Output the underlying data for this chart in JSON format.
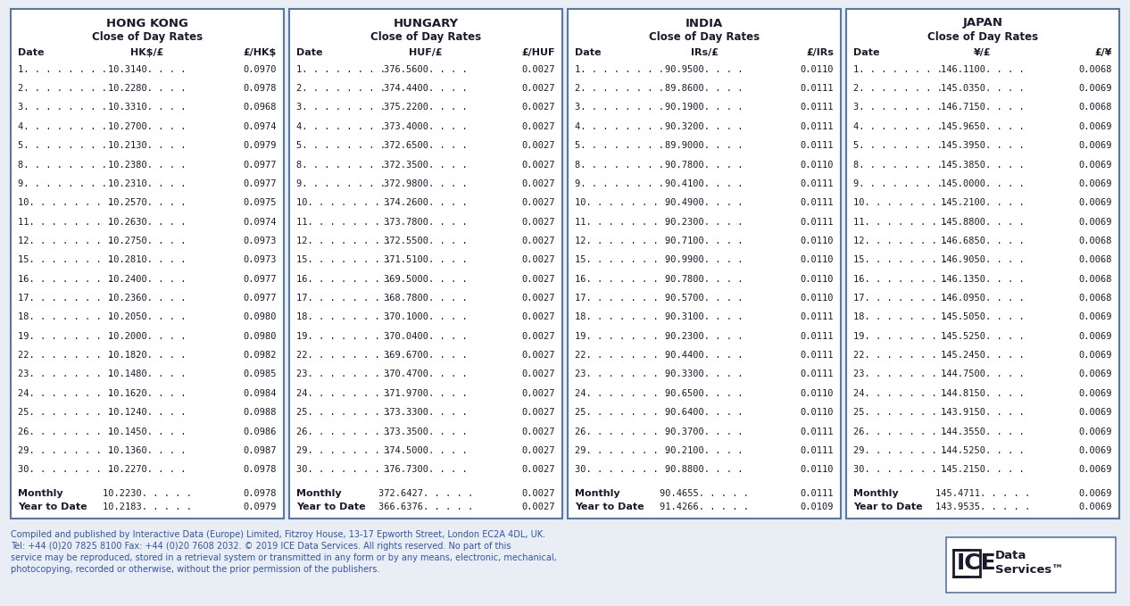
{
  "bg_color": "#e8eef4",
  "box_bg": "#ffffff",
  "border_color": "#5577aa",
  "text_color": "#1a1a2e",
  "footer_color": "#3355aa",
  "countries": [
    "HONG KONG",
    "HUNGARY",
    "INDIA",
    "JAPAN"
  ],
  "subtitle": "Close of Day Rates",
  "col_headers": [
    [
      "Date",
      "HK$/£",
      "£/HK$"
    ],
    [
      "Date",
      "HUF/£",
      "£/HUF"
    ],
    [
      "Date",
      "IRs/£",
      "£/IRs"
    ],
    [
      "Date",
      "¥/£",
      "£/¥"
    ]
  ],
  "dates": [
    "1",
    "2",
    "3",
    "4",
    "5",
    "8",
    "9",
    "10",
    "11",
    "12",
    "15",
    "16",
    "17",
    "18",
    "19",
    "22",
    "23",
    "24",
    "25",
    "26",
    "29",
    "30"
  ],
  "data": [
    {
      "col1": [
        "10.3140",
        "10.2280",
        "10.3310",
        "10.2700",
        "10.2130",
        "10.2380",
        "10.2310",
        "10.2570",
        "10.2630",
        "10.2750",
        "10.2810",
        "10.2400",
        "10.2360",
        "10.2050",
        "10.2000",
        "10.1820",
        "10.1480",
        "10.1620",
        "10.1240",
        "10.1450",
        "10.1360",
        "10.2270"
      ],
      "col2": [
        "0.0970",
        "0.0978",
        "0.0968",
        "0.0974",
        "0.0979",
        "0.0977",
        "0.0977",
        "0.0975",
        "0.0974",
        "0.0973",
        "0.0973",
        "0.0977",
        "0.0977",
        "0.0980",
        "0.0980",
        "0.0982",
        "0.0985",
        "0.0984",
        "0.0988",
        "0.0986",
        "0.0987",
        "0.0978"
      ],
      "monthly": [
        "10.2230",
        "0.0978"
      ],
      "ytd": [
        "10.2183",
        "0.0979"
      ]
    },
    {
      "col1": [
        "376.5600",
        "374.4400",
        "375.2200",
        "373.4000",
        "372.6500",
        "372.3500",
        "372.9800",
        "374.2600",
        "373.7800",
        "372.5500",
        "371.5100",
        "369.5000",
        "368.7800",
        "370.1000",
        "370.0400",
        "369.6700",
        "370.4700",
        "371.9700",
        "373.3300",
        "373.3500",
        "374.5000",
        "376.7300"
      ],
      "col2": [
        "0.0027",
        "0.0027",
        "0.0027",
        "0.0027",
        "0.0027",
        "0.0027",
        "0.0027",
        "0.0027",
        "0.0027",
        "0.0027",
        "0.0027",
        "0.0027",
        "0.0027",
        "0.0027",
        "0.0027",
        "0.0027",
        "0.0027",
        "0.0027",
        "0.0027",
        "0.0027",
        "0.0027",
        "0.0027"
      ],
      "monthly": [
        "372.6427",
        "0.0027"
      ],
      "ytd": [
        "366.6376",
        "0.0027"
      ]
    },
    {
      "col1": [
        "90.9500",
        "89.8600",
        "90.1900",
        "90.3200",
        "89.9000",
        "90.7800",
        "90.4100",
        "90.4900",
        "90.2300",
        "90.7100",
        "90.9900",
        "90.7800",
        "90.5700",
        "90.3100",
        "90.2300",
        "90.4400",
        "90.3300",
        "90.6500",
        "90.6400",
        "90.3700",
        "90.2100",
        "90.8800"
      ],
      "col2": [
        "0.0110",
        "0.0111",
        "0.0111",
        "0.0111",
        "0.0111",
        "0.0110",
        "0.0111",
        "0.0111",
        "0.0111",
        "0.0110",
        "0.0110",
        "0.0110",
        "0.0110",
        "0.0111",
        "0.0111",
        "0.0111",
        "0.0111",
        "0.0110",
        "0.0110",
        "0.0111",
        "0.0111",
        "0.0110"
      ],
      "monthly": [
        "90.4655",
        "0.0111"
      ],
      "ytd": [
        "91.4266",
        "0.0109"
      ]
    },
    {
      "col1": [
        "146.1100",
        "145.0350",
        "146.7150",
        "145.9650",
        "145.3950",
        "145.3850",
        "145.0000",
        "145.2100",
        "145.8800",
        "146.6850",
        "146.9050",
        "146.1350",
        "146.0950",
        "145.5050",
        "145.5250",
        "145.2450",
        "144.7500",
        "144.8150",
        "143.9150",
        "144.3550",
        "144.5250",
        "145.2150"
      ],
      "col2": [
        "0.0068",
        "0.0069",
        "0.0068",
        "0.0069",
        "0.0069",
        "0.0069",
        "0.0069",
        "0.0069",
        "0.0069",
        "0.0068",
        "0.0068",
        "0.0068",
        "0.0068",
        "0.0069",
        "0.0069",
        "0.0069",
        "0.0069",
        "0.0069",
        "0.0069",
        "0.0069",
        "0.0069",
        "0.0069"
      ],
      "monthly": [
        "145.4711",
        "0.0069"
      ],
      "ytd": [
        "143.9535",
        "0.0069"
      ]
    }
  ],
  "footer_line1": "Compiled and published by Interactive Data (Europe) Limited, Fitzroy House, 13-17 Epworth Street, London EC2A 4DL, UK.",
  "footer_line2": "Tel: +44 (0)20 7825 8100 Fax: +44 (0)20 7608 2032. © 2019 ICE Data Services. All rights reserved. No part of this",
  "footer_line3": "service may be reproduced, stored in a retrieval system or transmitted in any form or by any means, electronic, mechanical,",
  "footer_line4": "photocopying, recorded or otherwise, without the prior permission of the publishers."
}
